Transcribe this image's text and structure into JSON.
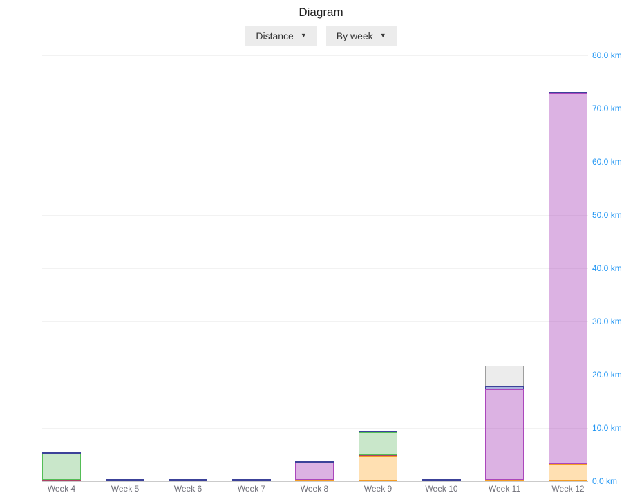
{
  "page": {
    "title": "Diagram"
  },
  "icons": {
    "chevron_down": "▼"
  },
  "controls": {
    "metric_dropdown": {
      "label": "Distance"
    },
    "grouping_dropdown": {
      "label": "By week"
    }
  },
  "chart_data": {
    "type": "bar",
    "stacked": true,
    "title": "Diagram",
    "unit": "km",
    "legend": false,
    "grid": true,
    "y_axis": {
      "side": "right",
      "min": 0,
      "max": 80,
      "tick_step": 10,
      "tick_labels": [
        "0.0 km",
        "10.0 km",
        "20.0 km",
        "30.0 km",
        "40.0 km",
        "50.0 km",
        "60.0 km",
        "70.0 km",
        "80.0 km"
      ],
      "label_color": "#2196f3"
    },
    "x_axis": {
      "label_color": "#6f6f78"
    },
    "categories": [
      "Week 4",
      "Week 5",
      "Week 6",
      "Week 7",
      "Week 8",
      "Week 9",
      "Week 10",
      "Week 11",
      "Week 12"
    ],
    "totals_km": [
      5.4,
      0.4,
      0.4,
      0.4,
      3.7,
      9.5,
      0.4,
      21.6,
      73.1
    ],
    "bars": [
      {
        "category": "Week 4",
        "segments": [
          {
            "color": "red",
            "value": 0.2
          },
          {
            "color": "green",
            "value": 4.9
          },
          {
            "color": "blue",
            "value": 0.3
          }
        ]
      },
      {
        "category": "Week 5",
        "segments": [
          {
            "color": "blue",
            "value": 0.4
          }
        ]
      },
      {
        "category": "Week 6",
        "segments": [
          {
            "color": "blue",
            "value": 0.4
          }
        ]
      },
      {
        "category": "Week 7",
        "segments": [
          {
            "color": "blue",
            "value": 0.4
          }
        ]
      },
      {
        "category": "Week 8",
        "segments": [
          {
            "color": "orange",
            "value": 0.2
          },
          {
            "color": "purple",
            "value": 3.2
          },
          {
            "color": "blue",
            "value": 0.3
          }
        ]
      },
      {
        "category": "Week 9",
        "segments": [
          {
            "color": "orange",
            "value": 4.7
          },
          {
            "color": "red",
            "value": 0.2
          },
          {
            "color": "green",
            "value": 4.3
          },
          {
            "color": "blue",
            "value": 0.3
          }
        ]
      },
      {
        "category": "Week 10",
        "segments": [
          {
            "color": "blue",
            "value": 0.4
          }
        ]
      },
      {
        "category": "Week 11",
        "segments": [
          {
            "color": "orange",
            "value": 0.2
          },
          {
            "color": "purple",
            "value": 17.0
          },
          {
            "color": "blue",
            "value": 0.5
          },
          {
            "color": "gray",
            "value": 3.9
          }
        ]
      },
      {
        "category": "Week 12",
        "segments": [
          {
            "color": "orange",
            "value": 3.2
          },
          {
            "color": "purple",
            "value": 69.6
          },
          {
            "color": "blue",
            "value": 0.3
          }
        ]
      }
    ],
    "palette": {
      "green": {
        "fill": "rgba(76,175,80,0.30)",
        "border": "#53bd56"
      },
      "purple": {
        "fill": "rgba(171,71,188,0.42)",
        "border": "#ab47bc"
      },
      "orange": {
        "fill": "rgba(255,152,0,0.30)",
        "border": "#f49d25"
      },
      "blue": {
        "fill": "rgba(63,81,181,0.45)",
        "border": "#3c4299"
      },
      "red": {
        "fill": "rgba(233,30,99,0.35)",
        "border": "#ad4265"
      },
      "gray": {
        "fill": "rgba(158,158,158,0.20)",
        "border": "#9e9e9e"
      }
    }
  }
}
